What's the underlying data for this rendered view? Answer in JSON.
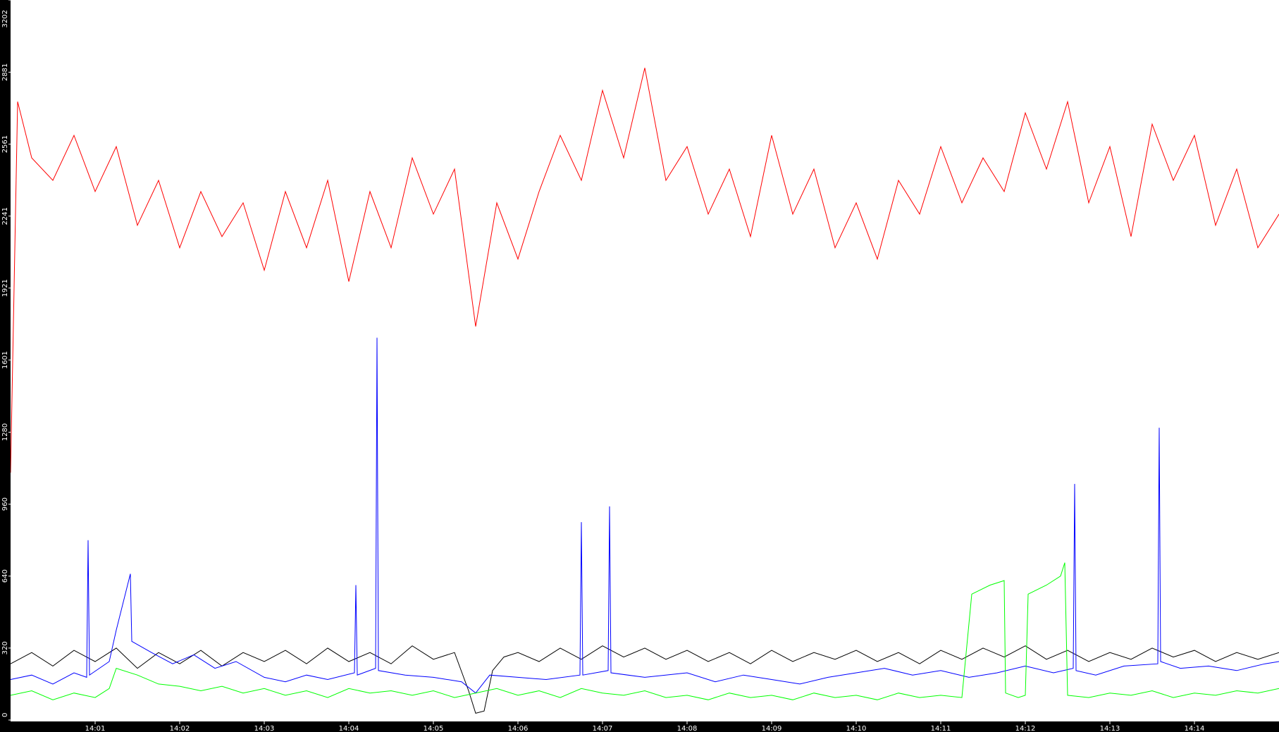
{
  "chart_data": {
    "type": "line",
    "title": "",
    "xlabel": "",
    "ylabel": "",
    "xlim": [
      "14:00:00",
      "14:15:00"
    ],
    "ylim": [
      0,
      3202
    ],
    "grid": false,
    "legend": "none",
    "y_ticks": [
      "0",
      "320",
      "640",
      "960",
      "1280",
      "1601",
      "1921",
      "2241",
      "2561",
      "2881",
      "3202"
    ],
    "x_ticks": [
      "14:01",
      "14:02",
      "14:03",
      "14:04",
      "14:05",
      "14:06",
      "14:07",
      "14:08",
      "14:09",
      "14:10",
      "14:11",
      "14:12",
      "14:13",
      "14:14"
    ],
    "series": [
      {
        "color": "#ff0000",
        "points": [
          [
            "14:00:00",
            1100
          ],
          [
            "14:00:05",
            2750
          ],
          [
            "14:00:15",
            2500
          ],
          [
            "14:00:30",
            2400
          ],
          [
            "14:00:45",
            2600
          ],
          [
            "14:01:00",
            2350
          ],
          [
            "14:01:15",
            2550
          ],
          [
            "14:01:30",
            2200
          ],
          [
            "14:01:45",
            2400
          ],
          [
            "14:02:00",
            2100
          ],
          [
            "14:02:15",
            2350
          ],
          [
            "14:02:30",
            2150
          ],
          [
            "14:02:45",
            2300
          ],
          [
            "14:03:00",
            2000
          ],
          [
            "14:03:15",
            2350
          ],
          [
            "14:03:30",
            2100
          ],
          [
            "14:03:45",
            2400
          ],
          [
            "14:04:00",
            1950
          ],
          [
            "14:04:15",
            2350
          ],
          [
            "14:04:30",
            2100
          ],
          [
            "14:04:45",
            2500
          ],
          [
            "14:05:00",
            2250
          ],
          [
            "14:05:15",
            2450
          ],
          [
            "14:05:30",
            1750
          ],
          [
            "14:05:45",
            2300
          ],
          [
            "14:06:00",
            2050
          ],
          [
            "14:06:15",
            2350
          ],
          [
            "14:06:30",
            2600
          ],
          [
            "14:06:45",
            2400
          ],
          [
            "14:07:00",
            2800
          ],
          [
            "14:07:15",
            2500
          ],
          [
            "14:07:30",
            2900
          ],
          [
            "14:07:45",
            2400
          ],
          [
            "14:08:00",
            2550
          ],
          [
            "14:08:15",
            2250
          ],
          [
            "14:08:30",
            2450
          ],
          [
            "14:08:45",
            2150
          ],
          [
            "14:09:00",
            2600
          ],
          [
            "14:09:15",
            2250
          ],
          [
            "14:09:30",
            2450
          ],
          [
            "14:09:45",
            2100
          ],
          [
            "14:10:00",
            2300
          ],
          [
            "14:10:15",
            2050
          ],
          [
            "14:10:30",
            2400
          ],
          [
            "14:10:45",
            2250
          ],
          [
            "14:11:00",
            2550
          ],
          [
            "14:11:15",
            2300
          ],
          [
            "14:11:30",
            2500
          ],
          [
            "14:11:45",
            2350
          ],
          [
            "14:12:00",
            2700
          ],
          [
            "14:12:15",
            2450
          ],
          [
            "14:12:30",
            2750
          ],
          [
            "14:12:45",
            2300
          ],
          [
            "14:13:00",
            2550
          ],
          [
            "14:13:15",
            2150
          ],
          [
            "14:13:30",
            2650
          ],
          [
            "14:13:45",
            2400
          ],
          [
            "14:14:00",
            2600
          ],
          [
            "14:14:15",
            2200
          ],
          [
            "14:14:30",
            2450
          ],
          [
            "14:14:45",
            2100
          ],
          [
            "14:15:00",
            2250
          ]
        ]
      },
      {
        "color": "#000000",
        "points": [
          [
            "14:00:00",
            250
          ],
          [
            "14:00:15",
            300
          ],
          [
            "14:00:30",
            240
          ],
          [
            "14:00:45",
            310
          ],
          [
            "14:01:00",
            260
          ],
          [
            "14:01:15",
            320
          ],
          [
            "14:01:30",
            230
          ],
          [
            "14:01:45",
            300
          ],
          [
            "14:02:00",
            250
          ],
          [
            "14:02:15",
            310
          ],
          [
            "14:02:30",
            240
          ],
          [
            "14:02:45",
            300
          ],
          [
            "14:03:00",
            260
          ],
          [
            "14:03:15",
            310
          ],
          [
            "14:03:30",
            250
          ],
          [
            "14:03:45",
            320
          ],
          [
            "14:04:00",
            260
          ],
          [
            "14:04:15",
            300
          ],
          [
            "14:04:30",
            250
          ],
          [
            "14:04:45",
            330
          ],
          [
            "14:05:00",
            270
          ],
          [
            "14:05:15",
            300
          ],
          [
            "14:05:25",
            130
          ],
          [
            "14:05:30",
            30
          ],
          [
            "14:05:36",
            40
          ],
          [
            "14:05:42",
            220
          ],
          [
            "14:05:50",
            280
          ],
          [
            "14:06:00",
            300
          ],
          [
            "14:06:15",
            260
          ],
          [
            "14:06:30",
            320
          ],
          [
            "14:06:45",
            270
          ],
          [
            "14:07:00",
            330
          ],
          [
            "14:07:15",
            280
          ],
          [
            "14:07:30",
            320
          ],
          [
            "14:07:45",
            270
          ],
          [
            "14:08:00",
            310
          ],
          [
            "14:08:15",
            260
          ],
          [
            "14:08:30",
            300
          ],
          [
            "14:08:45",
            250
          ],
          [
            "14:09:00",
            310
          ],
          [
            "14:09:15",
            260
          ],
          [
            "14:09:30",
            300
          ],
          [
            "14:09:45",
            270
          ],
          [
            "14:10:00",
            310
          ],
          [
            "14:10:15",
            260
          ],
          [
            "14:10:30",
            300
          ],
          [
            "14:10:45",
            250
          ],
          [
            "14:11:00",
            310
          ],
          [
            "14:11:15",
            270
          ],
          [
            "14:11:30",
            320
          ],
          [
            "14:11:45",
            280
          ],
          [
            "14:12:00",
            330
          ],
          [
            "14:12:15",
            270
          ],
          [
            "14:12:30",
            310
          ],
          [
            "14:12:45",
            260
          ],
          [
            "14:13:00",
            300
          ],
          [
            "14:13:15",
            270
          ],
          [
            "14:13:30",
            320
          ],
          [
            "14:13:45",
            280
          ],
          [
            "14:14:00",
            310
          ],
          [
            "14:14:15",
            260
          ],
          [
            "14:14:30",
            300
          ],
          [
            "14:14:45",
            270
          ],
          [
            "14:15:00",
            300
          ]
        ]
      },
      {
        "color": "#0000ff",
        "points": [
          [
            "14:00:00",
            180
          ],
          [
            "14:00:15",
            200
          ],
          [
            "14:00:30",
            160
          ],
          [
            "14:00:45",
            210
          ],
          [
            "14:00:54",
            190
          ],
          [
            "14:00:55",
            800
          ],
          [
            "14:00:56",
            200
          ],
          [
            "14:01:10",
            260
          ],
          [
            "14:01:15",
            400
          ],
          [
            "14:01:25",
            650
          ],
          [
            "14:01:26",
            350
          ],
          [
            "14:01:40",
            300
          ],
          [
            "14:01:55",
            250
          ],
          [
            "14:02:10",
            290
          ],
          [
            "14:02:25",
            230
          ],
          [
            "14:02:40",
            260
          ],
          [
            "14:03:00",
            190
          ],
          [
            "14:03:15",
            170
          ],
          [
            "14:03:30",
            200
          ],
          [
            "14:03:45",
            180
          ],
          [
            "14:04:04",
            210
          ],
          [
            "14:04:05",
            600
          ],
          [
            "14:04:06",
            200
          ],
          [
            "14:04:19",
            230
          ],
          [
            "14:04:20",
            1700
          ],
          [
            "14:04:21",
            220
          ],
          [
            "14:04:40",
            200
          ],
          [
            "14:05:00",
            190
          ],
          [
            "14:05:20",
            170
          ],
          [
            "14:05:30",
            120
          ],
          [
            "14:05:40",
            200
          ],
          [
            "14:06:00",
            190
          ],
          [
            "14:06:20",
            180
          ],
          [
            "14:06:44",
            200
          ],
          [
            "14:06:45",
            880
          ],
          [
            "14:06:46",
            200
          ],
          [
            "14:07:04",
            220
          ],
          [
            "14:07:05",
            950
          ],
          [
            "14:07:06",
            210
          ],
          [
            "14:07:30",
            190
          ],
          [
            "14:08:00",
            210
          ],
          [
            "14:08:20",
            170
          ],
          [
            "14:08:40",
            200
          ],
          [
            "14:09:00",
            180
          ],
          [
            "14:09:20",
            160
          ],
          [
            "14:09:40",
            190
          ],
          [
            "14:10:00",
            210
          ],
          [
            "14:10:20",
            230
          ],
          [
            "14:10:40",
            200
          ],
          [
            "14:11:00",
            220
          ],
          [
            "14:11:20",
            190
          ],
          [
            "14:11:40",
            210
          ],
          [
            "14:12:00",
            240
          ],
          [
            "14:12:20",
            210
          ],
          [
            "14:12:34",
            230
          ],
          [
            "14:12:35",
            1050
          ],
          [
            "14:12:36",
            220
          ],
          [
            "14:12:50",
            200
          ],
          [
            "14:13:10",
            240
          ],
          [
            "14:13:34",
            250
          ],
          [
            "14:13:35",
            1300
          ],
          [
            "14:13:36",
            260
          ],
          [
            "14:13:50",
            230
          ],
          [
            "14:14:10",
            240
          ],
          [
            "14:14:30",
            220
          ],
          [
            "14:14:50",
            250
          ],
          [
            "14:15:00",
            260
          ]
        ]
      },
      {
        "color": "#00ff00",
        "points": [
          [
            "14:00:00",
            110
          ],
          [
            "14:00:15",
            130
          ],
          [
            "14:00:30",
            90
          ],
          [
            "14:00:45",
            120
          ],
          [
            "14:01:00",
            100
          ],
          [
            "14:01:10",
            140
          ],
          [
            "14:01:15",
            230
          ],
          [
            "14:01:30",
            200
          ],
          [
            "14:01:45",
            160
          ],
          [
            "14:02:00",
            150
          ],
          [
            "14:02:15",
            130
          ],
          [
            "14:02:30",
            150
          ],
          [
            "14:02:45",
            120
          ],
          [
            "14:03:00",
            140
          ],
          [
            "14:03:15",
            110
          ],
          [
            "14:03:30",
            130
          ],
          [
            "14:03:45",
            100
          ],
          [
            "14:04:00",
            140
          ],
          [
            "14:04:15",
            120
          ],
          [
            "14:04:30",
            130
          ],
          [
            "14:04:45",
            110
          ],
          [
            "14:05:00",
            130
          ],
          [
            "14:05:15",
            100
          ],
          [
            "14:05:30",
            120
          ],
          [
            "14:05:45",
            140
          ],
          [
            "14:06:00",
            110
          ],
          [
            "14:06:15",
            130
          ],
          [
            "14:06:30",
            100
          ],
          [
            "14:06:45",
            140
          ],
          [
            "14:07:00",
            120
          ],
          [
            "14:07:15",
            110
          ],
          [
            "14:07:30",
            130
          ],
          [
            "14:07:45",
            100
          ],
          [
            "14:08:00",
            110
          ],
          [
            "14:08:15",
            90
          ],
          [
            "14:08:30",
            120
          ],
          [
            "14:08:45",
            100
          ],
          [
            "14:09:00",
            110
          ],
          [
            "14:09:15",
            90
          ],
          [
            "14:09:30",
            120
          ],
          [
            "14:09:45",
            100
          ],
          [
            "14:10:00",
            110
          ],
          [
            "14:10:15",
            90
          ],
          [
            "14:10:30",
            120
          ],
          [
            "14:10:45",
            100
          ],
          [
            "14:11:00",
            110
          ],
          [
            "14:11:15",
            100
          ],
          [
            "14:11:22",
            560
          ],
          [
            "14:11:35",
            600
          ],
          [
            "14:11:45",
            620
          ],
          [
            "14:11:46",
            120
          ],
          [
            "14:11:55",
            100
          ],
          [
            "14:12:00",
            110
          ],
          [
            "14:12:02",
            560
          ],
          [
            "14:12:15",
            600
          ],
          [
            "14:12:25",
            640
          ],
          [
            "14:12:28",
            700
          ],
          [
            "14:12:30",
            110
          ],
          [
            "14:12:45",
            100
          ],
          [
            "14:13:00",
            120
          ],
          [
            "14:13:15",
            110
          ],
          [
            "14:13:30",
            130
          ],
          [
            "14:13:45",
            100
          ],
          [
            "14:14:00",
            120
          ],
          [
            "14:14:15",
            110
          ],
          [
            "14:14:30",
            130
          ],
          [
            "14:14:45",
            120
          ],
          [
            "14:15:00",
            140
          ]
        ]
      }
    ]
  }
}
